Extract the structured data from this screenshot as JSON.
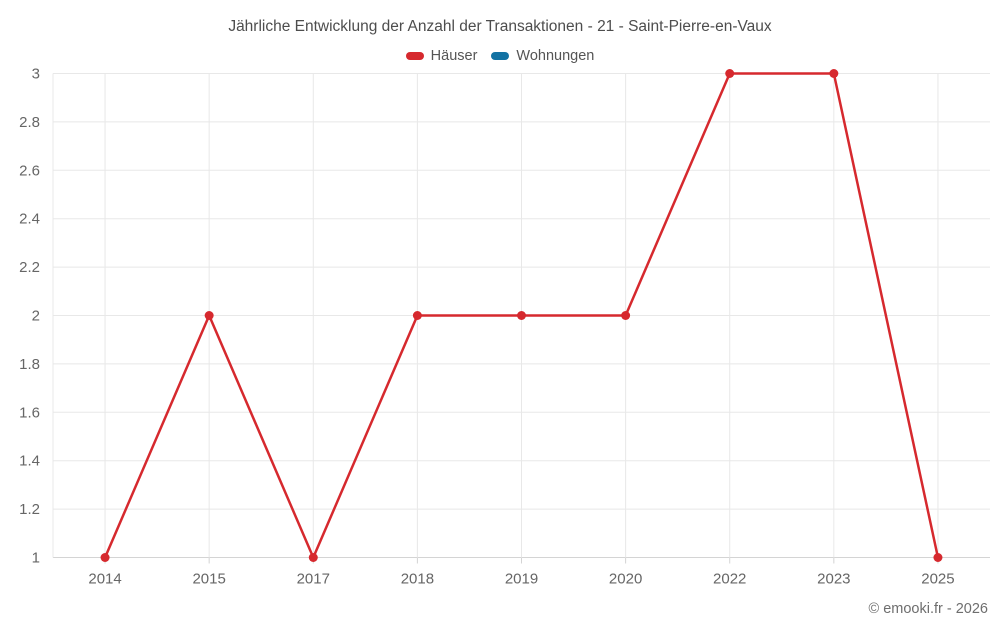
{
  "header": {
    "title": "Jährliche Entwicklung der Anzahl der Transaktionen - 21 - Saint-Pierre-en-Vaux"
  },
  "legend": [
    {
      "label": "Häuser",
      "color": "#d6292e"
    },
    {
      "label": "Wohnungen",
      "color": "#1272a3"
    }
  ],
  "footer": {
    "credit": "© emooki.fr - 2026"
  },
  "chart_data": {
    "type": "line",
    "title": "Jährliche Entwicklung der Anzahl der Transaktionen - 21 - Saint-Pierre-en-Vaux",
    "categories": [
      "2014",
      "2015",
      "2017",
      "2018",
      "2019",
      "2020",
      "2022",
      "2023",
      "2025"
    ],
    "series": [
      {
        "name": "Häuser",
        "color": "#d6292e",
        "values": [
          1,
          2,
          1,
          2,
          2,
          2,
          3,
          3,
          1
        ]
      },
      {
        "name": "Wohnungen",
        "color": "#1272a3",
        "values": []
      }
    ],
    "xlabel": "",
    "ylabel": "",
    "ylim": [
      1,
      3
    ],
    "ytick_step": 0.2,
    "grid": true,
    "legend_position": "top",
    "grid_color": "#e8e8e8",
    "axis_line_color": "#d4d4d4",
    "tick_label_color": "#666666"
  }
}
